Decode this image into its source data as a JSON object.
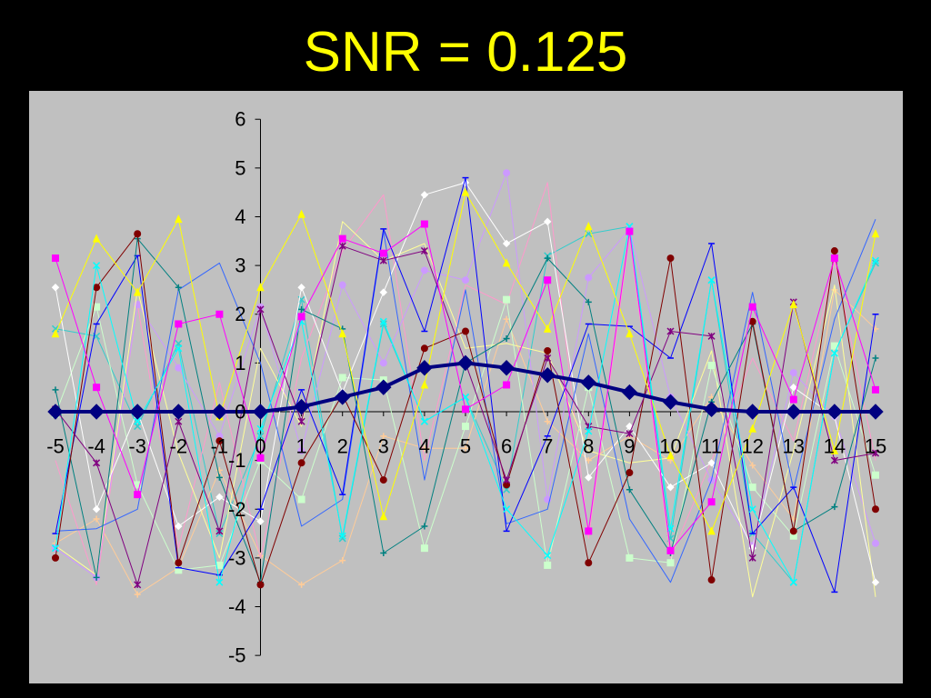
{
  "colors": {
    "page_background": "#000000",
    "plot_area": "#C0C0C0",
    "title": "#FFFF00",
    "axis": "#000000"
  },
  "chart_data": {
    "type": "line",
    "title": "SNR = 0.125",
    "x": [
      -5,
      -4,
      -3,
      -2,
      -1,
      0,
      1,
      2,
      3,
      4,
      5,
      6,
      7,
      8,
      9,
      10,
      11,
      12,
      13,
      14,
      15
    ],
    "xlim": [
      -5,
      15
    ],
    "ylim": [
      -5,
      6
    ],
    "yticks": [
      6,
      5,
      4,
      3,
      2,
      1,
      0,
      -1,
      -2,
      -3,
      -4,
      -5
    ],
    "grid": false,
    "series": [
      {
        "color": "#000080",
        "marker": "diamond",
        "values": [
          0,
          0,
          0,
          0,
          0,
          0,
          0.1,
          0.3,
          0.5,
          0.9,
          1.0,
          0.9,
          0.75,
          0.6,
          0.4,
          0.2,
          0.05,
          0,
          0,
          0,
          0
        ]
      },
      {
        "color": "#FF00FF",
        "marker": "square",
        "values": [
          3.15,
          0.5,
          -1.7,
          1.8,
          2.0,
          -0.95,
          1.95,
          3.55,
          3.25,
          3.85,
          0.05,
          0.55,
          2.7,
          -2.45,
          3.7,
          -2.85,
          -1.85,
          2.15,
          0.25,
          3.15,
          0.45
        ]
      },
      {
        "color": "#FFFF00",
        "marker": "triangle",
        "values": [
          1.6,
          3.55,
          2.45,
          3.95,
          -0.1,
          2.55,
          4.05,
          1.6,
          -2.15,
          0.55,
          4.5,
          3.05,
          1.7,
          3.8,
          1.6,
          -0.9,
          -2.45,
          -0.35,
          2.2,
          -0.8,
          3.65
        ]
      },
      {
        "color": "#00FFFF",
        "marker": "x",
        "values": [
          -2.8,
          3.0,
          -0.2,
          1.3,
          -3.5,
          -0.35,
          1.85,
          -2.55,
          1.85,
          -0.2,
          0.3,
          -2.0,
          -2.95,
          -0.4,
          3.8,
          -2.4,
          2.7,
          -2.0,
          -3.5,
          1.2,
          3.1
        ]
      },
      {
        "color": "#800080",
        "marker": "asterisk",
        "values": [
          0.05,
          -1.05,
          -3.55,
          -0.2,
          -2.45,
          2.1,
          -0.2,
          3.4,
          3.1,
          3.3,
          1.0,
          -1.4,
          1.1,
          -0.3,
          -0.45,
          1.65,
          1.55,
          -3.0,
          2.25,
          -1.0,
          -0.85
        ]
      },
      {
        "color": "#800000",
        "marker": "circle",
        "values": [
          -3.0,
          2.55,
          3.65,
          -3.1,
          -0.6,
          -3.55,
          -1.05,
          0.35,
          -1.4,
          1.3,
          1.65,
          -1.5,
          1.25,
          -3.1,
          -1.25,
          3.15,
          -3.45,
          1.85,
          -2.45,
          3.3,
          -2.0
        ]
      },
      {
        "color": "#008080",
        "marker": "plus",
        "values": [
          0.45,
          -3.4,
          3.55,
          2.55,
          -1.35,
          -3.5,
          2.1,
          1.7,
          -2.9,
          -2.35,
          1.0,
          1.5,
          3.15,
          2.25,
          -1.6,
          -2.9,
          0.2,
          1.8,
          -2.45,
          -1.95,
          1.1
        ]
      },
      {
        "color": "#0000FF",
        "marker": "dash",
        "values": [
          -2.5,
          1.8,
          3.2,
          -3.2,
          -3.35,
          -2.0,
          0.45,
          -1.7,
          3.75,
          1.65,
          4.8,
          -2.45,
          -0.5,
          1.8,
          1.75,
          1.1,
          3.45,
          -2.5,
          -1.55,
          -3.7,
          2.0
        ]
      },
      {
        "color": "#3366FF",
        "marker": "none",
        "values": [
          -2.45,
          -2.4,
          -2.0,
          2.5,
          3.05,
          1.0,
          -2.35,
          -1.8,
          3.7,
          -1.4,
          2.5,
          -2.3,
          -2.0,
          1.6,
          -2.2,
          -3.5,
          -1.4,
          2.45,
          -1.6,
          1.9,
          3.95
        ]
      },
      {
        "color": "#FFFFFF",
        "marker": "diamond",
        "values": [
          2.55,
          -2.0,
          0.0,
          -2.35,
          -1.75,
          -2.25,
          2.55,
          0.4,
          2.45,
          4.45,
          4.7,
          3.45,
          3.9,
          -1.35,
          -0.3,
          -1.55,
          -1.05,
          -2.8,
          0.5,
          -0.1,
          -3.5
        ]
      },
      {
        "color": "#CCFFCC",
        "marker": "square",
        "values": [
          -0.05,
          2.15,
          -1.5,
          -3.25,
          -3.15,
          -1.0,
          -1.8,
          0.7,
          0.65,
          -2.8,
          -0.3,
          2.3,
          -3.15,
          0.5,
          -3.0,
          -3.1,
          0.95,
          -1.55,
          -2.55,
          1.35,
          -1.3
        ]
      },
      {
        "color": "#FFFF99",
        "marker": "none",
        "values": [
          -2.75,
          -3.35,
          2.5,
          -0.85,
          -3.0,
          1.3,
          -0.3,
          3.9,
          3.1,
          3.45,
          1.3,
          1.4,
          1.2,
          -0.8,
          -1.05,
          -0.95,
          1.25,
          -3.8,
          -0.8,
          2.6,
          -3.8
        ]
      },
      {
        "color": "#CC99FF",
        "marker": "circle",
        "values": [
          -2.8,
          -3.4,
          2.2,
          0.9,
          -0.5,
          2.15,
          -0.8,
          2.6,
          1.0,
          2.9,
          2.7,
          4.9,
          -1.8,
          2.75,
          3.75,
          0.3,
          -1.4,
          -2.75,
          0.8,
          -0.1,
          -2.7
        ]
      },
      {
        "color": "#FF99CC",
        "marker": "none",
        "values": [
          -1.0,
          -3.55,
          2.2,
          -2.8,
          0.6,
          -3.0,
          1.1,
          3.3,
          4.45,
          -1.0,
          2.6,
          2.2,
          4.7,
          -2.6,
          3.6,
          -3.0,
          -1.0,
          1.1,
          -0.6,
          3.1,
          -1.0
        ]
      },
      {
        "color": "#FFCC99",
        "marker": "plus",
        "values": [
          -2.7,
          -2.2,
          -3.75,
          -3.2,
          -1.2,
          -2.95,
          -3.55,
          -3.05,
          -0.5,
          -0.75,
          -0.75,
          1.9,
          -0.2,
          -1.0,
          -0.5,
          -1.0,
          0.3,
          -1.1,
          -2.2,
          2.5,
          1.7
        ]
      },
      {
        "color": "#33CCCC",
        "marker": "x",
        "values": [
          1.7,
          1.55,
          -0.3,
          1.4,
          -2.5,
          -0.5,
          2.3,
          -2.6,
          1.8,
          -0.2,
          0.3,
          -1.6,
          3.2,
          3.65,
          3.8,
          -2.6,
          2.7,
          -2.5,
          -3.5,
          1.2,
          3.05
        ]
      }
    ]
  }
}
